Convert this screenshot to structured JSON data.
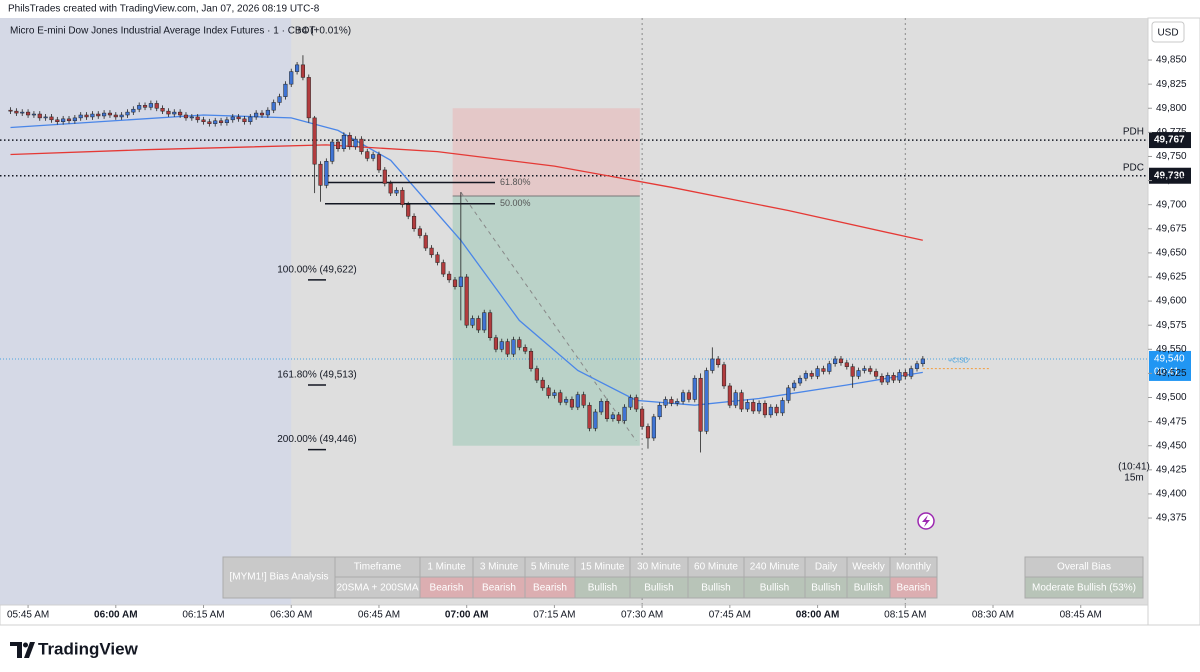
{
  "chart_data": {
    "type": "candlestick",
    "header": "PhilsTrades created with TradingView.com, Jan 07, 2026 08:19 UTC-8",
    "legend": "Micro E-mini Dow Jones Industrial Average Index Futures · 1 · CBOT",
    "change": "+4 (+0.01%)",
    "currency": "USD",
    "up_color": "#3f74d4",
    "down_color": "#b23c3e",
    "xlim": [
      -4.8,
      191.5
    ],
    "ylim": [
      49284.8,
      49893.6
    ],
    "xticks": [
      {
        "value": 0,
        "label": "05:45 AM"
      },
      {
        "value": 15,
        "label": "06:00 AM"
      },
      {
        "value": 30,
        "label": "06:15 AM"
      },
      {
        "value": 45,
        "label": "06:30 AM"
      },
      {
        "value": 60,
        "label": "06:45 AM"
      },
      {
        "value": 75,
        "label": "07:00 AM"
      },
      {
        "value": 90,
        "label": "07:15 AM"
      },
      {
        "value": 105,
        "label": "07:30 AM"
      },
      {
        "value": 120,
        "label": "07:45 AM"
      },
      {
        "value": 135,
        "label": "08:00 AM"
      },
      {
        "value": 150,
        "label": "08:15 AM"
      },
      {
        "value": 165,
        "label": "08:30 AM"
      },
      {
        "value": 180,
        "label": "08:45 AM"
      }
    ],
    "yticks": [
      {
        "value": 49375,
        "label": "49,375"
      },
      {
        "value": 49400,
        "label": "49,400"
      },
      {
        "value": 49425,
        "label": "49,425"
      },
      {
        "value": 49450,
        "label": "49,450"
      },
      {
        "value": 49475,
        "label": "49,475"
      },
      {
        "value": 49500,
        "label": "49,500"
      },
      {
        "value": 49525,
        "label": "49,525"
      },
      {
        "value": 49550,
        "label": "49,550"
      },
      {
        "value": 49575,
        "label": "49,575"
      },
      {
        "value": 49600,
        "label": "49,600"
      },
      {
        "value": 49625,
        "label": "49,625"
      },
      {
        "value": 49650,
        "label": "49,650"
      },
      {
        "value": 49675,
        "label": "49,675"
      },
      {
        "value": 49700,
        "label": "49,700"
      },
      {
        "value": 49725,
        "label": "49,725"
      },
      {
        "value": 49750,
        "label": "49,750"
      },
      {
        "value": 49775,
        "label": "49,775"
      },
      {
        "value": 49800,
        "label": "49,800"
      },
      {
        "value": 49825,
        "label": "49,825"
      },
      {
        "value": 49850,
        "label": "49,850"
      }
    ],
    "session_start": 45,
    "session_markers": [
      105,
      150
    ],
    "x": [
      -3,
      -2,
      -1,
      0,
      1,
      2,
      3,
      4,
      5,
      6,
      7,
      8,
      9,
      10,
      11,
      12,
      13,
      14,
      15,
      16,
      17,
      18,
      19,
      20,
      21,
      22,
      23,
      24,
      25,
      26,
      27,
      28,
      29,
      30,
      31,
      32,
      33,
      34,
      35,
      36,
      37,
      38,
      39,
      40,
      41,
      42,
      43,
      44,
      45,
      46,
      47,
      48,
      49,
      50,
      51,
      52,
      53,
      54,
      55,
      56,
      57,
      58,
      59,
      60,
      61,
      62,
      63,
      64,
      65,
      66,
      67,
      68,
      69,
      70,
      71,
      72,
      73,
      74,
      75,
      76,
      77,
      78,
      79,
      80,
      81,
      82,
      83,
      84,
      85,
      86,
      87,
      88,
      89,
      90,
      91,
      92,
      93,
      94,
      95,
      96,
      97,
      98,
      99,
      100,
      101,
      102,
      103,
      104,
      105,
      106,
      107,
      108,
      109,
      110,
      111,
      112,
      113,
      114,
      115,
      116,
      117,
      118,
      119,
      120,
      121,
      122,
      123,
      124,
      125,
      126,
      127,
      128,
      129,
      130,
      131,
      132,
      133,
      134,
      135,
      136,
      137,
      138,
      139,
      140,
      141,
      142,
      143,
      144,
      145,
      146,
      147,
      148,
      149,
      150,
      151,
      152,
      153
    ],
    "open": [
      49798,
      49797,
      49795,
      49796,
      49793,
      49794,
      49790,
      49791,
      49788,
      49786,
      49789,
      49787,
      49790,
      49793,
      49791,
      49794,
      49792,
      49795,
      49793,
      49791,
      49793,
      49796,
      49799,
      49803,
      49801,
      49805,
      49800,
      49797,
      49794,
      49796,
      49793,
      49790,
      49791,
      49788,
      49786,
      49784,
      49787,
      49785,
      49788,
      49791,
      49789,
      49786,
      49791,
      49795,
      49793,
      49798,
      49806,
      49812,
      49825,
      49838,
      49845,
      49832,
      49790,
      49742,
      49720,
      49745,
      49765,
      49758,
      49772,
      49760,
      49768,
      49755,
      49748,
      49752,
      49736,
      49722,
      49712,
      49715,
      49700,
      49688,
      49675,
      49668,
      49655,
      49648,
      49640,
      49628,
      49622,
      49615,
      49625,
      49575,
      49582,
      49570,
      49588,
      49562,
      49550,
      49558,
      49545,
      49560,
      49552,
      49548,
      49530,
      49518,
      49510,
      49502,
      49505,
      49495,
      49498,
      49490,
      49503,
      49492,
      49468,
      49485,
      49496,
      49478,
      49482,
      49476,
      49490,
      49500,
      49488,
      49470,
      49458,
      49480,
      49492,
      49498,
      49494,
      49496,
      49505,
      49498,
      49520,
      49465,
      49528,
      49540,
      49534,
      49512,
      49492,
      49505,
      49488,
      49495,
      49486,
      49494,
      49482,
      49490,
      49484,
      49497,
      49510,
      49515,
      49520,
      49525,
      49522,
      49530,
      49527,
      49535,
      49540,
      49536,
      49532,
      49522,
      49528,
      49530,
      49527,
      49522,
      49516,
      49523,
      49518,
      49526,
      49522,
      49530,
      49535
    ],
    "high": [
      49801,
      49800,
      49799,
      49799,
      49797,
      49797,
      49794,
      49794,
      49791,
      49792,
      49792,
      49793,
      49796,
      49796,
      49797,
      49797,
      49798,
      49798,
      49796,
      49796,
      49799,
      49802,
      49806,
      49806,
      49808,
      49808,
      49803,
      49800,
      49799,
      49799,
      49796,
      49794,
      49794,
      49791,
      49789,
      49790,
      49790,
      49791,
      49794,
      49794,
      49792,
      49794,
      49798,
      49798,
      49801,
      49809,
      49815,
      49828,
      49841,
      49848,
      49855,
      49835,
      49792,
      49745,
      49748,
      49768,
      49768,
      49775,
      49775,
      49771,
      49771,
      49758,
      49755,
      49755,
      49739,
      49725,
      49718,
      49718,
      49703,
      49691,
      49678,
      49671,
      49658,
      49651,
      49643,
      49631,
      49625,
      49713,
      49628,
      49585,
      49585,
      49591,
      49591,
      49565,
      49561,
      49561,
      49563,
      49563,
      49555,
      49551,
      49533,
      49521,
      49513,
      49508,
      49508,
      49501,
      49501,
      49506,
      49506,
      49495,
      49488,
      49499,
      49499,
      49485,
      49485,
      49493,
      49503,
      49503,
      49491,
      49473,
      49483,
      49495,
      49501,
      49501,
      49499,
      49508,
      49508,
      49523,
      49525,
      49531,
      49552,
      49543,
      49537,
      49515,
      49508,
      49508,
      49498,
      49498,
      49497,
      49497,
      49493,
      49493,
      49500,
      49513,
      49518,
      49523,
      49528,
      49528,
      49533,
      49533,
      49538,
      49543,
      49543,
      49539,
      49535,
      49531,
      49533,
      49533,
      49530,
      49525,
      49526,
      49526,
      49529,
      49529,
      49533,
      49538,
      49543
    ],
    "low": [
      49794,
      49792,
      49792,
      49790,
      49790,
      49787,
      49787,
      49785,
      49783,
      49783,
      49784,
      49784,
      49787,
      49788,
      49788,
      49789,
      49789,
      49790,
      49788,
      49788,
      49790,
      49793,
      49796,
      49798,
      49798,
      49797,
      49794,
      49791,
      49791,
      49790,
      49787,
      49787,
      49785,
      49783,
      49781,
      49781,
      49782,
      49782,
      49785,
      49786,
      49783,
      49783,
      49788,
      49790,
      49790,
      49795,
      49803,
      49809,
      49822,
      49835,
      49829,
      49785,
      49712,
      49703,
      49717,
      49742,
      49755,
      49755,
      49757,
      49757,
      49752,
      49745,
      49745,
      49733,
      49719,
      49709,
      49709,
      49697,
      49685,
      49672,
      49665,
      49652,
      49645,
      49637,
      49625,
      49619,
      49612,
      49580,
      49572,
      49572,
      49567,
      49567,
      49559,
      49547,
      49547,
      49542,
      49542,
      49549,
      49545,
      49527,
      49515,
      49507,
      49499,
      49499,
      49492,
      49492,
      49487,
      49487,
      49489,
      49465,
      49465,
      49482,
      49475,
      49475,
      49473,
      49473,
      49487,
      49485,
      49467,
      49447,
      49455,
      49477,
      49489,
      49491,
      49491,
      49493,
      49495,
      49495,
      49443,
      49462,
      49525,
      49531,
      49509,
      49489,
      49489,
      49485,
      49485,
      49483,
      49483,
      49479,
      49479,
      49481,
      49481,
      49494,
      49507,
      49512,
      49517,
      49519,
      49519,
      49524,
      49524,
      49532,
      49533,
      49529,
      49510,
      49519,
      49525,
      49524,
      49519,
      49513,
      49513,
      49515,
      49515,
      49519,
      49519,
      49527,
      49532
    ],
    "close": [
      49797,
      49795,
      49796,
      49793,
      49794,
      49790,
      49791,
      49788,
      49786,
      49789,
      49787,
      49790,
      49793,
      49791,
      49794,
      49792,
      49795,
      49793,
      49791,
      49793,
      49796,
      49799,
      49803,
      49801,
      49805,
      49800,
      49797,
      49794,
      49796,
      49793,
      49790,
      49791,
      49788,
      49786,
      49784,
      49787,
      49785,
      49788,
      49791,
      49789,
      49786,
      49791,
      49795,
      49793,
      49798,
      49806,
      49812,
      49825,
      49838,
      49845,
      49832,
      49790,
      49742,
      49720,
      49745,
      49765,
      49758,
      49772,
      49760,
      49768,
      49755,
      49748,
      49752,
      49736,
      49722,
      49712,
      49715,
      49700,
      49688,
      49675,
      49668,
      49655,
      49648,
      49640,
      49628,
      49622,
      49615,
      49625,
      49575,
      49582,
      49570,
      49588,
      49562,
      49550,
      49558,
      49545,
      49560,
      49552,
      49548,
      49530,
      49518,
      49510,
      49502,
      49505,
      49495,
      49498,
      49490,
      49503,
      49492,
      49468,
      49485,
      49496,
      49478,
      49482,
      49476,
      49490,
      49500,
      49488,
      49470,
      49458,
      49480,
      49492,
      49498,
      49494,
      49496,
      49505,
      49498,
      49520,
      49465,
      49528,
      49540,
      49534,
      49512,
      49492,
      49505,
      49488,
      49495,
      49486,
      49494,
      49482,
      49490,
      49484,
      49497,
      49510,
      49515,
      49520,
      49525,
      49522,
      49530,
      49527,
      49535,
      49540,
      49536,
      49532,
      49522,
      49528,
      49530,
      49527,
      49522,
      49516,
      49523,
      49518,
      49526,
      49522,
      49530,
      49535,
      49540
    ],
    "lines": [
      {
        "name": "20SMA",
        "color": "#4a86e8",
        "x": [
          -3,
          30,
          45,
          53,
          62,
          74,
          84,
          94,
          104,
          114,
          125,
          140,
          153
        ],
        "values": [
          49780,
          49793,
          49790,
          49777,
          49746,
          49663,
          49580,
          49528,
          49497,
          49492,
          49499,
          49513,
          49526
        ]
      },
      {
        "name": "200SMA",
        "color": "#e53935",
        "x": [
          -3,
          20,
          51,
          70,
          90,
          110,
          130,
          153
        ],
        "values": [
          49752,
          49757,
          49762,
          49755,
          49740,
          49718,
          49694,
          49663
        ]
      }
    ],
    "position": {
      "x": [
        72.6,
        104.6
      ],
      "stop": 49800,
      "entry": 49709,
      "target": 49450
    },
    "fib_levels": [
      {
        "label": "61.80%",
        "value": 49723
      },
      {
        "label": "50.00%",
        "value": 49701
      },
      {
        "label": "100.00% (49,622)",
        "value": 49622
      },
      {
        "label": "161.80% (49,513)",
        "value": 49513
      },
      {
        "label": "200.00% (49,446)",
        "value": 49446
      }
    ],
    "price_lines": [
      {
        "name": "PDH",
        "value": 49767,
        "value_label": "49,767"
      },
      {
        "name": "PDC",
        "value": 49730,
        "value_label": "49,730"
      }
    ],
    "last_price": {
      "value": 49540,
      "value_label": "49,540",
      "countdown": "00:41"
    },
    "cisd": {
      "label": "+CISD",
      "value": 49530
    },
    "htf": {
      "time": "(10:41)",
      "timeframe": "15m"
    },
    "bias_table": {
      "title": "[MYM1!] Bias Analysis",
      "header": [
        "Timeframe",
        "1 Minute",
        "3 Minute",
        "5 Minute",
        "15 Minute",
        "30 Minute",
        "60 Minute",
        "240 Minute",
        "Daily",
        "Weekly",
        "Monthly"
      ],
      "row": [
        "20SMA + 200SMA",
        "Bearish",
        "Bearish",
        "Bearish",
        "Bullish",
        "Bullish",
        "Bullish",
        "Bullish",
        "Bullish",
        "Bullish",
        "Bearish"
      ],
      "row_colors": [
        "#c9c9c9",
        "#dcaeb1",
        "#dcaeb1",
        "#dcaeb1",
        "#b8c4b8",
        "#b8c4b8",
        "#b8c4b8",
        "#b8c4b8",
        "#b8c4b8",
        "#b8c4b8",
        "#dcaeb1"
      ]
    },
    "overall_bias": {
      "title": "Overall Bias",
      "value": "Moderate Bullish (53%)"
    },
    "footer": "TradingView"
  }
}
